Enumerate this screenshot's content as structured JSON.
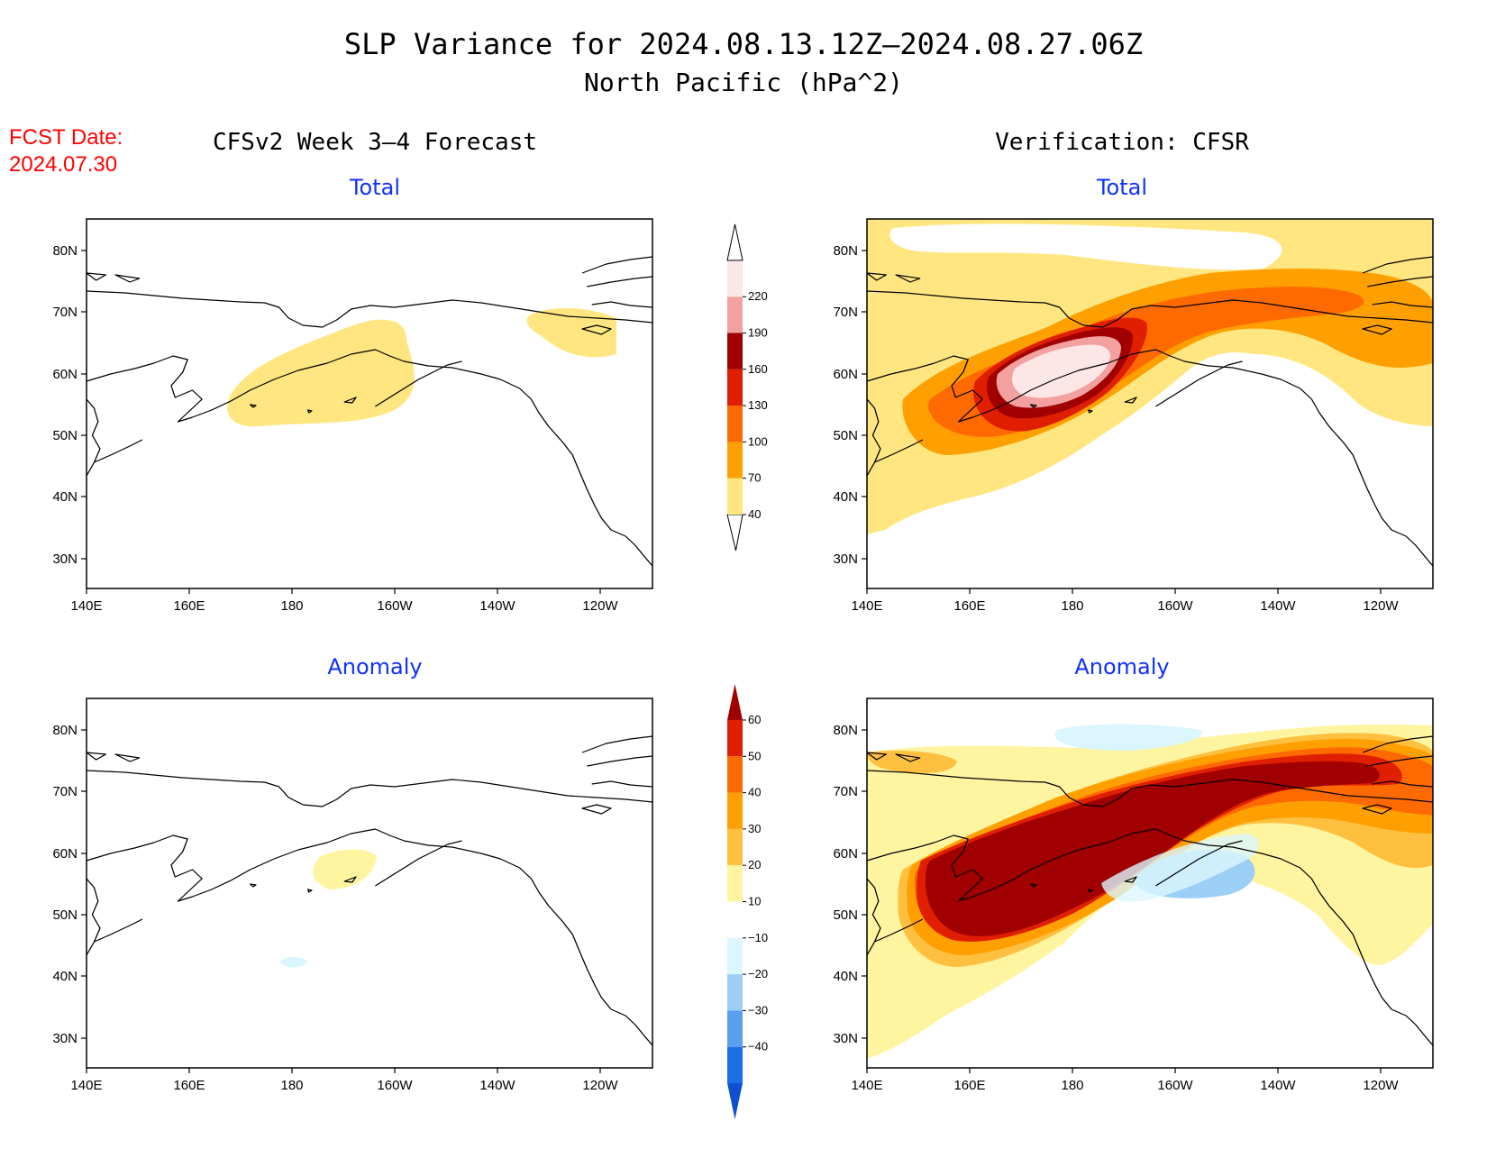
{
  "header": {
    "title_line1": "SLP Variance for 2024.08.13.12Z–2024.08.27.06Z",
    "title_line2": "North Pacific (hPa^2)",
    "fcst_date_label": "FCST Date:",
    "fcst_date_value": "2024.07.30",
    "left_column_title": "CFSv2 Week 3–4 Forecast",
    "right_column_title": "Verification: CFSR"
  },
  "panels": {
    "fcst_total_title": "Total",
    "verif_total_title": "Total",
    "fcst_anom_title": "Anomaly",
    "verif_anom_title": "Anomaly"
  },
  "axes": {
    "lat_labels": [
      "80N",
      "70N",
      "60N",
      "50N",
      "40N",
      "30N"
    ],
    "lon_labels": [
      "140E",
      "160E",
      "180",
      "160W",
      "140W",
      "120W"
    ]
  },
  "colorbars": {
    "total": {
      "levels": [
        "40",
        "70",
        "100",
        "130",
        "160",
        "190",
        "220"
      ],
      "colors": [
        "#ffe680",
        "#ffa000",
        "#ff6a00",
        "#e01e00",
        "#a00000",
        "#f2a0a0",
        "#fde6e6"
      ]
    },
    "anomaly": {
      "levels": [
        "60",
        "50",
        "40",
        "30",
        "20",
        "10",
        "−10",
        "−20",
        "−30",
        "−40"
      ],
      "colors_top_to_bottom": [
        "#a00000",
        "#e01e00",
        "#ff6a00",
        "#ffa000",
        "#ffc040",
        "#fff4a0",
        "#ffffff",
        "#dcf6ff",
        "#9ccff5",
        "#5aa0f0",
        "#1e6ee6",
        "#1050d0"
      ]
    }
  },
  "map_extent": {
    "lon_min": "140E",
    "lon_max": "110W",
    "lat_min": "25N",
    "lat_max": "85N"
  }
}
